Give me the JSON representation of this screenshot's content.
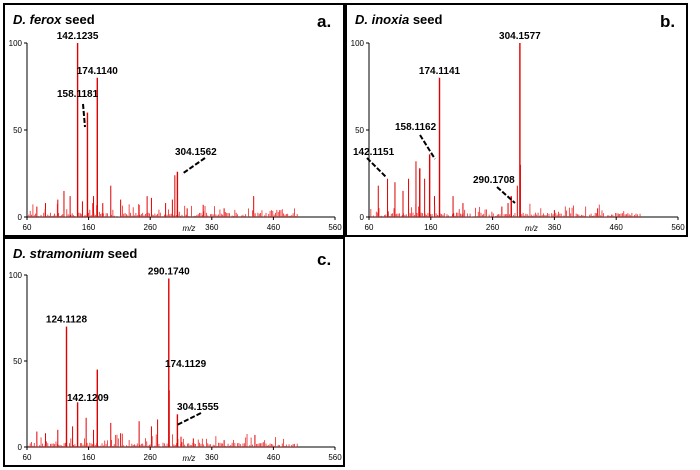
{
  "chart_data": [
    {
      "type": "bar",
      "title_species": "D. ferox",
      "title_suffix": "seed",
      "panel_letter": "a.",
      "xlabel": "m/z",
      "xlim": [
        60,
        560
      ],
      "ylim": [
        0,
        100
      ],
      "x_ticks": [
        "60",
        "160",
        "260",
        "360",
        "460",
        "560"
      ],
      "y_ticks": [
        "0",
        "50",
        "100"
      ],
      "labeled_peaks": [
        {
          "label": "142.1235",
          "x": 142.12,
          "y": 100
        },
        {
          "label": "174.1140",
          "x": 174.11,
          "y": 80
        },
        {
          "label": "158.1181",
          "x": 158.12,
          "y": 60
        },
        {
          "label": "304.1562",
          "x": 304.16,
          "y": 26
        }
      ],
      "minor_peaks": [
        {
          "x": 300,
          "y": 24
        },
        {
          "x": 120,
          "y": 15
        },
        {
          "x": 130,
          "y": 12
        },
        {
          "x": 196,
          "y": 18
        },
        {
          "x": 168,
          "y": 12
        },
        {
          "x": 110,
          "y": 10
        },
        {
          "x": 255,
          "y": 12
        },
        {
          "x": 262,
          "y": 11
        },
        {
          "x": 296,
          "y": 10
        },
        {
          "x": 90,
          "y": 8
        },
        {
          "x": 212,
          "y": 10
        },
        {
          "x": 346,
          "y": 7
        },
        {
          "x": 428,
          "y": 12
        },
        {
          "x": 150,
          "y": 9
        },
        {
          "x": 285,
          "y": 8
        },
        {
          "x": 242,
          "y": 7
        },
        {
          "x": 183,
          "y": 8
        },
        {
          "x": 320,
          "y": 5
        },
        {
          "x": 380,
          "y": 5
        },
        {
          "x": 76,
          "y": 6
        }
      ]
    },
    {
      "type": "bar",
      "title_species": "D. inoxia",
      "title_suffix": "seed",
      "panel_letter": "b.",
      "xlabel": "m/z",
      "xlim": [
        60,
        560
      ],
      "ylim": [
        0,
        100
      ],
      "x_ticks": [
        "60",
        "160",
        "260",
        "360",
        "460",
        "560"
      ],
      "y_ticks": [
        "0",
        "50",
        "100"
      ],
      "labeled_peaks": [
        {
          "label": "304.1577",
          "x": 304.16,
          "y": 100
        },
        {
          "label": "174.1141",
          "x": 174.11,
          "y": 80
        },
        {
          "label": "158.1162",
          "x": 158.12,
          "y": 36
        },
        {
          "label": "142.1151",
          "x": 142.12,
          "y": 28
        },
        {
          "label": "290.1708",
          "x": 290.17,
          "y": 12
        }
      ],
      "minor_peaks": [
        {
          "x": 305,
          "y": 30
        },
        {
          "x": 136,
          "y": 32
        },
        {
          "x": 124,
          "y": 22
        },
        {
          "x": 150,
          "y": 22
        },
        {
          "x": 102,
          "y": 20
        },
        {
          "x": 75,
          "y": 18
        },
        {
          "x": 90,
          "y": 22
        },
        {
          "x": 115,
          "y": 15
        },
        {
          "x": 166,
          "y": 12
        },
        {
          "x": 300,
          "y": 18
        },
        {
          "x": 196,
          "y": 12
        },
        {
          "x": 212,
          "y": 8
        },
        {
          "x": 285,
          "y": 8
        },
        {
          "x": 275,
          "y": 6
        },
        {
          "x": 430,
          "y": 5
        },
        {
          "x": 360,
          "y": 4
        }
      ]
    },
    {
      "type": "bar",
      "title_species": "D. stramonium",
      "title_suffix": "seed",
      "panel_letter": "c.",
      "xlabel": "m/z",
      "xlim": [
        60,
        560
      ],
      "ylim": [
        0,
        100
      ],
      "x_ticks": [
        "60",
        "160",
        "260",
        "360",
        "460",
        "560"
      ],
      "y_ticks": [
        "0",
        "50",
        "100"
      ],
      "labeled_peaks": [
        {
          "label": "290.1740",
          "x": 290.17,
          "y": 98
        },
        {
          "label": "124.1128",
          "x": 124.11,
          "y": 70
        },
        {
          "label": "174.1129",
          "x": 174.11,
          "y": 45
        },
        {
          "label": "142.1209",
          "x": 142.12,
          "y": 26
        },
        {
          "label": "304.1555",
          "x": 304.16,
          "y": 19
        }
      ],
      "minor_peaks": [
        {
          "x": 291,
          "y": 33
        },
        {
          "x": 156,
          "y": 17
        },
        {
          "x": 134,
          "y": 12
        },
        {
          "x": 110,
          "y": 10
        },
        {
          "x": 196,
          "y": 14
        },
        {
          "x": 242,
          "y": 15
        },
        {
          "x": 262,
          "y": 12
        },
        {
          "x": 272,
          "y": 16
        },
        {
          "x": 168,
          "y": 10
        },
        {
          "x": 90,
          "y": 8
        },
        {
          "x": 212,
          "y": 8
        },
        {
          "x": 76,
          "y": 9
        },
        {
          "x": 310,
          "y": 6
        },
        {
          "x": 330,
          "y": 5
        },
        {
          "x": 430,
          "y": 7
        },
        {
          "x": 380,
          "y": 4
        }
      ]
    }
  ]
}
